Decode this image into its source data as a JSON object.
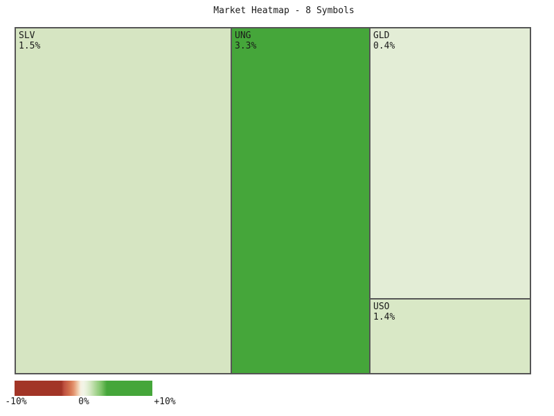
{
  "title": "Market Heatmap - 8 Symbols",
  "colors": {
    "page_background": "#ffffff",
    "tile_border": "#555555",
    "text": "#1a1a1a"
  },
  "chart_data": {
    "type": "heatmap",
    "subtype": "treemap-market-heatmap",
    "title": "Market Heatmap - 8 Symbols",
    "symbol_count_in_title": 8,
    "visible_tile_count": 4,
    "tiles": [
      {
        "symbol": "SLV",
        "change_pct": 1.5,
        "value_label": "1.5%",
        "color": "#d6e5c2"
      },
      {
        "symbol": "UNG",
        "change_pct": 3.3,
        "value_label": "3.3%",
        "color": "#45a63a"
      },
      {
        "symbol": "GLD",
        "change_pct": 0.4,
        "value_label": "0.4%",
        "color": "#e3edd6"
      },
      {
        "symbol": "USO",
        "change_pct": 1.4,
        "value_label": "1.4%",
        "color": "#d9e8c6"
      }
    ],
    "legend_position": "bottom-left",
    "colorbar": {
      "min": -10,
      "mid": 0,
      "max": 10,
      "min_label": "-10%",
      "mid_label": "0%",
      "max_label": "+10%",
      "negative_color": "#a23527",
      "neutral_color": "#f6f0e1",
      "positive_color": "#45a63a",
      "gradient_stops": [
        {
          "pos": 0,
          "color": "#a23527"
        },
        {
          "pos": 34,
          "color": "#a23527"
        },
        {
          "pos": 36,
          "color": "#bf5140"
        },
        {
          "pos": 40,
          "color": "#d3724f"
        },
        {
          "pos": 43,
          "color": "#e49571"
        },
        {
          "pos": 46,
          "color": "#f0cdae"
        },
        {
          "pos": 48,
          "color": "#f6f0e1"
        },
        {
          "pos": 50,
          "color": "#f2f4e6"
        },
        {
          "pos": 52,
          "color": "#e9f1dc"
        },
        {
          "pos": 55,
          "color": "#d3e7c1"
        },
        {
          "pos": 59,
          "color": "#a8d593"
        },
        {
          "pos": 63,
          "color": "#7ec369"
        },
        {
          "pos": 67,
          "color": "#45a63a"
        },
        {
          "pos": 100,
          "color": "#45a63a"
        }
      ]
    }
  }
}
